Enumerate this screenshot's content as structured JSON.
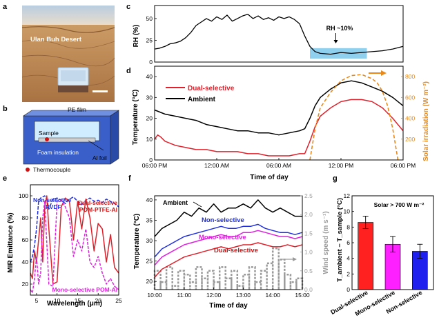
{
  "panel_letters": {
    "a": "a",
    "b": "b",
    "c": "c",
    "d": "d",
    "e": "e",
    "f": "f",
    "g": "g"
  },
  "colors": {
    "ambient": "#000000",
    "dual": "#e0202a",
    "mono": "#e020e0",
    "non": "#1f2fe0",
    "solar": "#e8891a",
    "wind": "#9a9a9a",
    "rh_band": "#7cc8ec",
    "bar_dual": "#ff2020",
    "bar_mono": "#ff20ff",
    "bar_non": "#2020ee",
    "sand": "#c89660",
    "sky": "#c8d8e8"
  },
  "panel_a": {
    "location": "Ulan Buh Desert"
  },
  "panel_b": {
    "labels": {
      "pe_film": "PE film",
      "sample": "Sample",
      "foam": "Foam insulation",
      "al_foil": "Al foil",
      "thermocouple": "Thermocouple"
    }
  },
  "chart_data": [
    {
      "id": "c",
      "type": "line",
      "title": "",
      "ylabel": "RH (%)",
      "ylim": [
        0,
        65
      ],
      "yticks": [
        0,
        25,
        50
      ],
      "xlim": [
        0,
        24
      ],
      "annotation": "RH ~10%",
      "band": {
        "x": [
          15.0,
          20.5
        ],
        "y": [
          4,
          16
        ]
      },
      "series": [
        {
          "name": "RH",
          "x": [
            0,
            0.5,
            1,
            1.5,
            2,
            2.5,
            3,
            3.5,
            4,
            4.5,
            5,
            5.5,
            6,
            6.5,
            7,
            7.5,
            8,
            8.5,
            9,
            9.5,
            10,
            10.5,
            11,
            11.5,
            12,
            12.5,
            13,
            13.5,
            14,
            14.5,
            15,
            15.5,
            16,
            17,
            18,
            19,
            20,
            21,
            22,
            23,
            24
          ],
          "values": [
            15,
            16,
            18,
            21,
            22,
            24,
            28,
            34,
            42,
            46,
            50,
            47,
            52,
            49,
            54,
            47,
            50,
            53,
            55,
            50,
            53,
            49,
            51,
            48,
            52,
            50,
            52,
            49,
            44,
            30,
            18,
            12,
            10,
            9,
            11,
            10,
            11,
            12,
            13,
            15,
            18
          ]
        }
      ]
    },
    {
      "id": "d",
      "type": "line",
      "title": "",
      "xlabel": "Time of day",
      "ylabel": "Temperature (°C)",
      "y2label": "Solar irradiation (W m⁻²)",
      "ylim": [
        0,
        45
      ],
      "yticks": [
        0,
        10,
        20,
        30,
        40
      ],
      "y2lim": [
        0,
        900
      ],
      "y2ticks": [
        200,
        400,
        600,
        800
      ],
      "xlim": [
        0,
        24
      ],
      "xticks": [
        0,
        6,
        12,
        18,
        24
      ],
      "xticklabels": [
        "06:00 PM",
        "12:00 AM",
        "06:00 AM",
        "12:00 PM",
        "06:00 PM"
      ],
      "series": [
        {
          "name": "Ambient",
          "x": [
            0,
            1,
            2,
            3,
            4,
            5,
            6,
            7,
            8,
            9,
            10,
            11,
            12,
            13,
            14,
            14.5,
            15,
            15.5,
            16,
            17,
            18,
            19,
            20,
            21,
            22,
            23,
            24
          ],
          "values": [
            24,
            22,
            21,
            20,
            19,
            17,
            16,
            15,
            14,
            14,
            13,
            13,
            12,
            13,
            14,
            15,
            20,
            26,
            30,
            34,
            37,
            38,
            37,
            35,
            33,
            30,
            26
          ]
        },
        {
          "name": "Dual-selective",
          "x": [
            0,
            0.3,
            0.6,
            1,
            1.5,
            2,
            3,
            4,
            5,
            6,
            7,
            8,
            9,
            10,
            11,
            12,
            13,
            14,
            14.5,
            15,
            15.5,
            16,
            17,
            18,
            19,
            20,
            21,
            22,
            23,
            24
          ],
          "values": [
            10,
            12,
            11,
            9,
            8,
            7,
            6,
            5,
            5,
            4,
            4,
            4,
            3,
            3,
            2,
            2,
            2,
            3,
            3,
            9,
            16,
            21,
            25,
            28,
            29,
            29,
            28,
            25,
            20,
            14
          ]
        },
        {
          "name": "Solar",
          "axis": "y2",
          "x": [
            15,
            15.5,
            16,
            17,
            18,
            19,
            20,
            21,
            21.5,
            22,
            22.5,
            23,
            23.5
          ],
          "values": [
            0,
            300,
            500,
            650,
            760,
            810,
            820,
            780,
            740,
            660,
            520,
            300,
            0
          ]
        }
      ]
    },
    {
      "id": "e",
      "type": "line",
      "title": "",
      "xlabel": "Wavelength (μm)",
      "ylabel": "MIR Emittance (%)",
      "ylim": [
        10,
        110
      ],
      "yticks": [
        20,
        40,
        60,
        80,
        100
      ],
      "xlim": [
        3.5,
        25
      ],
      "xticks": [
        5,
        10,
        15,
        20,
        25
      ],
      "annotations": [
        "Non-selective",
        "PVDF",
        "Dual-selective",
        "POM-PTFE-Al",
        "Mono-selective POM-Al"
      ],
      "series": [
        {
          "name": "Non-selective PVDF",
          "x": [
            3.5,
            4,
            4.5,
            5,
            5.5,
            6,
            7,
            7.5,
            8,
            9,
            10,
            11,
            12,
            13,
            14,
            15,
            16,
            17,
            18,
            19,
            20,
            21,
            22,
            23,
            24,
            25
          ],
          "values": [
            40,
            45,
            55,
            70,
            95,
            98,
            100,
            97,
            88,
            97,
            98,
            96,
            93,
            97,
            99,
            95,
            92,
            96,
            98,
            95,
            96,
            94,
            97,
            95,
            93,
            90
          ]
        },
        {
          "name": "Dual-selective POM-PTFE-Al",
          "x": [
            3.5,
            4,
            4.5,
            5,
            5.5,
            6,
            6.5,
            7,
            7.5,
            8,
            9,
            10,
            11,
            12,
            13,
            14,
            15,
            16,
            17,
            18,
            19,
            20,
            21,
            22,
            23,
            24,
            25
          ],
          "values": [
            30,
            25,
            50,
            40,
            60,
            80,
            40,
            90,
            100,
            70,
            20,
            22,
            90,
            98,
            95,
            60,
            95,
            70,
            97,
            80,
            50,
            75,
            70,
            40,
            65,
            35,
            30
          ]
        },
        {
          "name": "Mono-selective POM-Al",
          "x": [
            3.5,
            4,
            4.5,
            5,
            5.5,
            6,
            6.5,
            7,
            8,
            9,
            10,
            11,
            12,
            13,
            14,
            15,
            16,
            17,
            18,
            19,
            20,
            21,
            22,
            23,
            24,
            25
          ],
          "values": [
            15,
            12,
            25,
            45,
            20,
            30,
            80,
            95,
            20,
            18,
            95,
            96,
            90,
            80,
            45,
            60,
            50,
            70,
            40,
            35,
            45,
            30,
            20,
            25,
            18,
            15
          ]
        }
      ]
    },
    {
      "id": "f",
      "type": "line",
      "title": "",
      "xlabel": "Time of day",
      "ylabel": "Temperature (°C)",
      "y2label": "Wind speed (m s⁻¹)",
      "ylim": [
        18,
        41
      ],
      "yticks": [
        20,
        25,
        30,
        35,
        40
      ],
      "y2lim": [
        0,
        2.5
      ],
      "y2ticks": [
        0.0,
        0.5,
        1.0,
        1.5,
        2.0,
        2.5
      ],
      "xlim": [
        10,
        15
      ],
      "xticks": [
        10,
        11,
        12,
        13,
        14,
        15
      ],
      "xticklabels": [
        "10:00",
        "11:00",
        "12:00",
        "13:00",
        "14:00",
        "15:00"
      ],
      "series": [
        {
          "name": "Ambient",
          "x": [
            10,
            10.25,
            10.5,
            10.75,
            11,
            11.25,
            11.5,
            11.75,
            12,
            12.25,
            12.5,
            12.75,
            13,
            13.25,
            13.5,
            13.75,
            14,
            14.25,
            14.5,
            14.75,
            15
          ],
          "values": [
            31,
            33,
            34,
            35,
            37,
            36,
            38,
            37,
            39,
            37,
            38,
            38,
            39,
            38,
            40,
            38,
            37,
            38,
            37,
            36,
            36
          ]
        },
        {
          "name": "Non-selective",
          "x": [
            10,
            10.25,
            10.5,
            10.75,
            11,
            11.25,
            11.5,
            11.75,
            12,
            12.25,
            12.5,
            12.75,
            13,
            13.25,
            13.5,
            13.75,
            14,
            14.25,
            14.5,
            14.75,
            15
          ],
          "values": [
            26,
            28,
            29,
            30,
            31,
            31.5,
            32,
            32.5,
            33,
            33.5,
            33,
            33,
            33.5,
            33.5,
            34,
            33,
            32.5,
            32,
            32,
            31.5,
            32
          ]
        },
        {
          "name": "Mono-selective",
          "x": [
            10,
            10.25,
            10.5,
            10.75,
            11,
            11.25,
            11.5,
            11.75,
            12,
            12.25,
            12.5,
            12.75,
            13,
            13.25,
            13.5,
            13.75,
            14,
            14.25,
            14.5,
            14.75,
            15
          ],
          "values": [
            24,
            26,
            27,
            28,
            29,
            29.5,
            30,
            30.5,
            31,
            31.5,
            31,
            31,
            32,
            32,
            32.5,
            32,
            31.5,
            31,
            31,
            30.5,
            31
          ]
        },
        {
          "name": "Dual-selective",
          "x": [
            10,
            10.25,
            10.5,
            10.75,
            11,
            11.25,
            11.5,
            11.75,
            12,
            12.25,
            12.5,
            12.75,
            13,
            13.25,
            13.5,
            13.75,
            14,
            14.25,
            14.5,
            14.75,
            15
          ],
          "values": [
            21,
            23,
            24,
            25,
            26,
            26.5,
            27,
            27.5,
            28,
            28.5,
            28,
            28.5,
            29,
            29,
            29.5,
            29,
            28.5,
            28.5,
            29,
            28.5,
            29
          ]
        },
        {
          "name": "Wind speed",
          "axis": "y2",
          "x": [
            10,
            10.2,
            10.4,
            10.6,
            10.8,
            11,
            11.2,
            11.4,
            11.6,
            11.8,
            12,
            12.2,
            12.4,
            12.6,
            12.8,
            13,
            13.2,
            13.4,
            13.6,
            13.8,
            14,
            14.2,
            14.4,
            14.6,
            14.8,
            15
          ],
          "values": [
            0.5,
            0.2,
            0.6,
            0.1,
            0.5,
            0.4,
            0.2,
            0.6,
            0.3,
            0.5,
            0.2,
            0.6,
            0.3,
            0.5,
            0.1,
            0.4,
            0.6,
            0.2,
            0.5,
            0.7,
            1.1,
            0.8,
            0.4,
            0.2,
            0.3,
            0.1
          ]
        }
      ]
    },
    {
      "id": "g",
      "type": "bar",
      "title": "Solar > 700 W m⁻²",
      "ylabel": "T_ambient − T_sample (°C)",
      "ylim": [
        0,
        12
      ],
      "yticks": [
        0,
        2,
        4,
        6,
        8,
        10,
        12
      ],
      "categories": [
        "Dual-selective",
        "Mono-selective",
        "Non-selective"
      ],
      "values": [
        8.6,
        5.8,
        4.9
      ],
      "errors": [
        0.8,
        1.0,
        0.9
      ]
    }
  ]
}
